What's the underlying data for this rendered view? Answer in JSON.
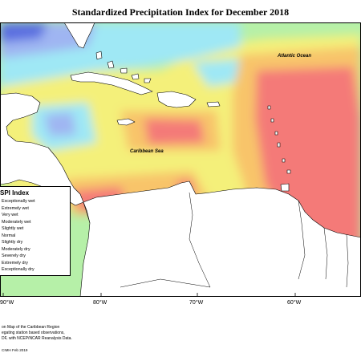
{
  "title": "Standardized Precipitation Index for December 2018",
  "labels": {
    "atlantic": "Atlantic Ocean",
    "caribbean": "Caribbean Sea"
  },
  "legend": {
    "title": "SPI Index",
    "items": [
      "Exceptionally wet",
      "Extremely wet",
      "Very wet",
      "Moderately wet",
      "Slightly wet",
      "Normal",
      "Slightly dry",
      "Moderately dry",
      "Severely dry",
      "Extremely dry",
      "Exceptionally dry"
    ]
  },
  "longitude_ticks": [
    "90°W",
    "80°W",
    "70°W",
    "60°W"
  ],
  "footer": {
    "lines": [
      "on Map of the Caribbean Region",
      "egating station based observations,",
      "DF, with NCEP/NCAR Reanalysis Data."
    ],
    "credit": "CIMH Feb 2019"
  },
  "colors": {
    "very_wet": "#5a6ee0",
    "moderately_wet": "#9fb5f2",
    "slightly_wet": "#9fe8f5",
    "normal": "#b6f0a8",
    "slightly_dry": "#f4f07a",
    "moderately_dry": "#f8c46a",
    "severely_dry": "#f89a7a",
    "extremely_dry": "#f47a78",
    "land": "#ffffff"
  }
}
